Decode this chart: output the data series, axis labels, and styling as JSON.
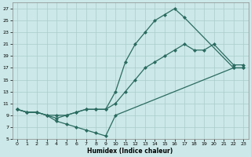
{
  "xlabel": "Humidex (Indice chaleur)",
  "bg_color": "#cce8e8",
  "grid_color": "#aacccc",
  "line_color": "#2a6b60",
  "marker": "D",
  "markersize": 2.0,
  "linewidth": 0.9,
  "xlim": [
    -0.5,
    23.5
  ],
  "ylim": [
    5,
    28
  ],
  "xticks": [
    0,
    1,
    2,
    3,
    4,
    5,
    6,
    7,
    8,
    9,
    10,
    11,
    12,
    13,
    14,
    15,
    16,
    17,
    18,
    19,
    20,
    21,
    22,
    23
  ],
  "yticks": [
    5,
    7,
    9,
    11,
    13,
    15,
    17,
    19,
    21,
    23,
    25,
    27
  ],
  "series": [
    {
      "x": [
        0,
        1,
        2,
        3,
        4,
        5,
        6,
        7,
        8,
        9,
        10,
        11,
        12,
        13,
        14,
        15,
        16,
        17,
        22,
        23
      ],
      "y": [
        10,
        9.5,
        9.5,
        9,
        8.5,
        9,
        9.5,
        10,
        10,
        10,
        13,
        18,
        21,
        23,
        25,
        26,
        27,
        25.5,
        17,
        17
      ]
    },
    {
      "x": [
        0,
        1,
        2,
        3,
        4,
        5,
        6,
        7,
        8,
        9,
        10,
        11,
        12,
        13,
        14,
        15,
        16,
        17,
        18,
        19,
        20,
        22,
        23
      ],
      "y": [
        10,
        9.5,
        9.5,
        9,
        9,
        9,
        9.5,
        10,
        10,
        10,
        11,
        13,
        15,
        17,
        18,
        19,
        20,
        21,
        20,
        20,
        21,
        17.5,
        17.5
      ]
    },
    {
      "x": [
        0,
        1,
        2,
        3,
        4,
        5,
        6,
        7,
        8,
        9,
        10,
        22,
        23
      ],
      "y": [
        10,
        9.5,
        9.5,
        9,
        8,
        7.5,
        7,
        6.5,
        6,
        5.5,
        9,
        17,
        17
      ]
    }
  ]
}
